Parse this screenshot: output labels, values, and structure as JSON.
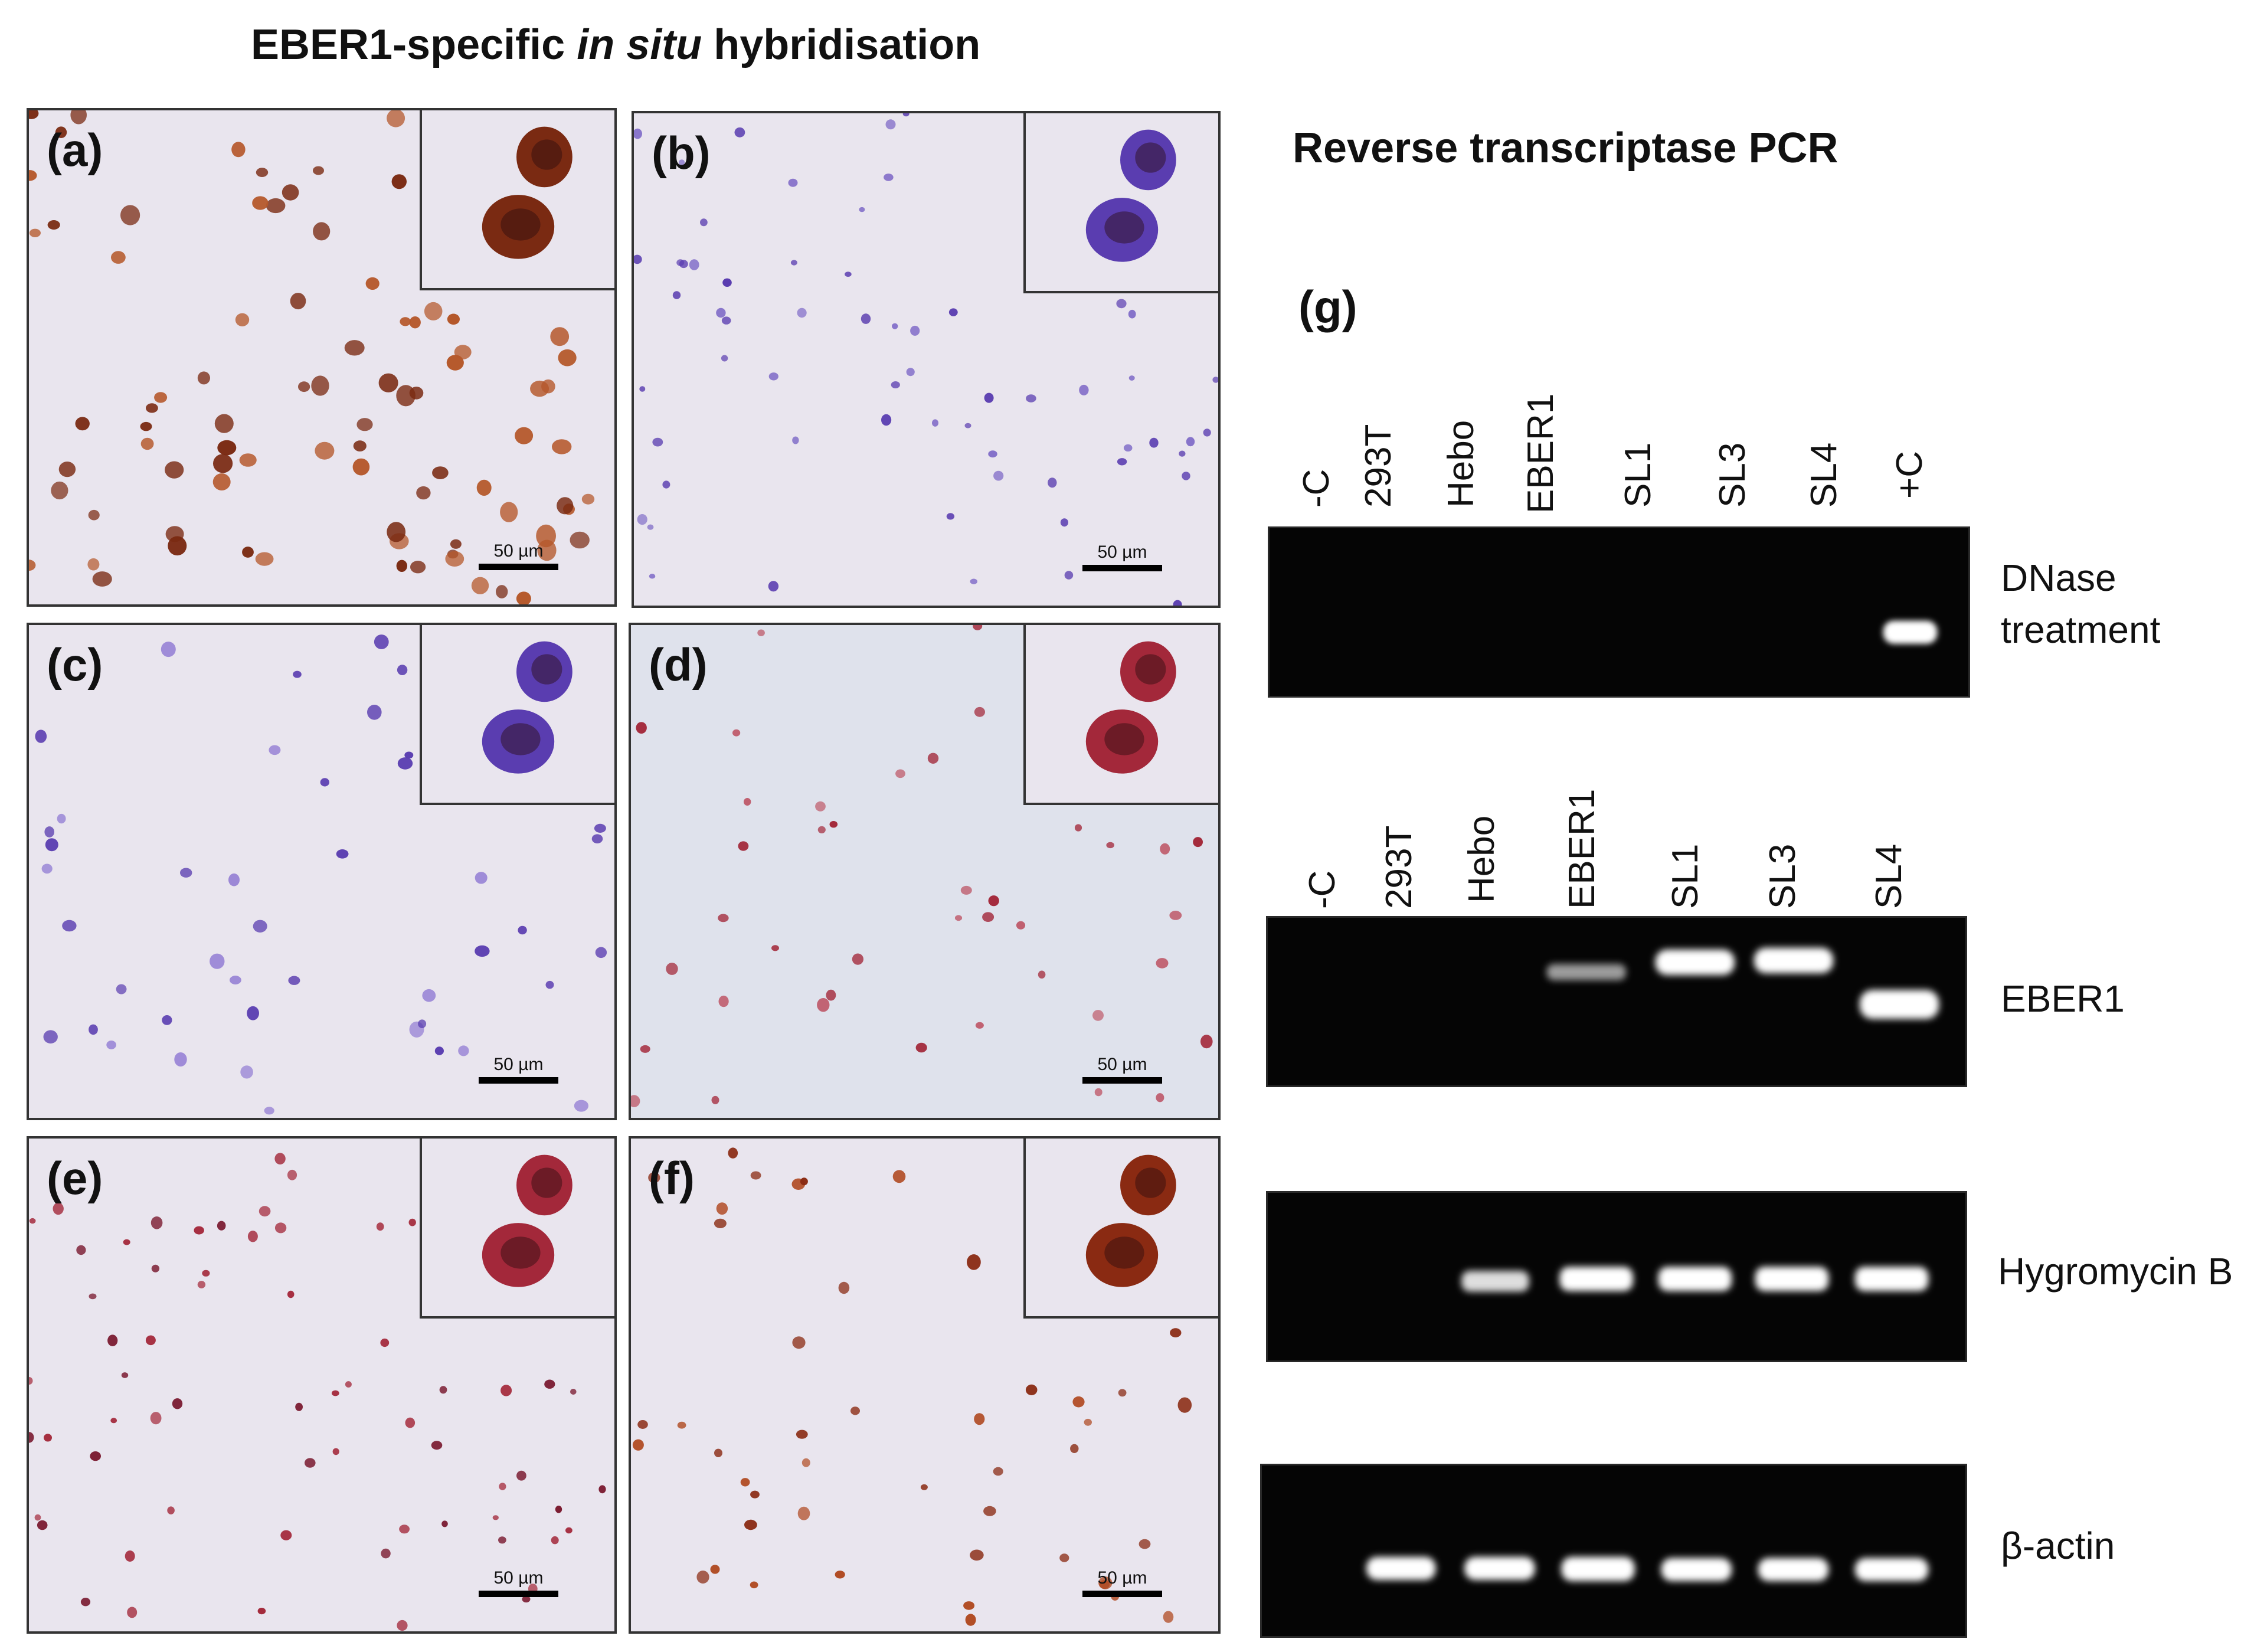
{
  "figure": {
    "ish_title": {
      "pre": "EBER1-specific ",
      "em": "in situ",
      "post": " hybridisation"
    },
    "pcr_title": "Reverse transcriptase  PCR",
    "panels": [
      {
        "label": "(a)",
        "scale": "50 µm"
      },
      {
        "label": "(b)",
        "scale": "50 µm"
      },
      {
        "label": "(c)",
        "scale": "50 µm"
      },
      {
        "label": "(d)",
        "scale": "50 µm"
      },
      {
        "label": "(e)",
        "scale": "50 µm"
      },
      {
        "label": "(f)",
        "scale": "50 µm"
      }
    ],
    "panel_g_label": "(g)",
    "gels": [
      {
        "lanes": [
          "-C",
          "293T",
          "Hebo",
          "EBER1",
          "SL1",
          "SL3",
          "SL4",
          "+C"
        ],
        "label_line1": "DNase",
        "label_line2": "treatment"
      },
      {
        "lanes": [
          "-C",
          "293T",
          "Hebo",
          "EBER1",
          "SL1",
          "SL3",
          "SL4"
        ],
        "label_line1": "EBER1"
      },
      {
        "label_line1": "Hygromycin B"
      },
      {
        "label_line1": "β-actin"
      }
    ]
  },
  "colors": {
    "slide_bg": "#e9e5ee",
    "dab_brown": "#7a2a12",
    "hematoxylin_blue": "#5a3db0",
    "fast_red": "#a3283a",
    "gel_band": "#ffffff"
  }
}
